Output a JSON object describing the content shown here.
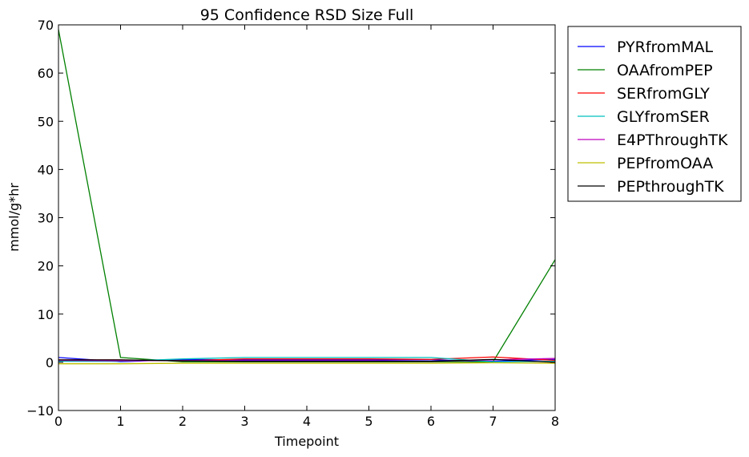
{
  "chart_data": {
    "type": "line",
    "title": "95 Confidence RSD Size Full",
    "xlabel": "Timepoint",
    "ylabel": "mmol/g*hr",
    "xlim": [
      0,
      8
    ],
    "ylim": [
      -10,
      70
    ],
    "xticks": [
      0,
      1,
      2,
      3,
      4,
      5,
      6,
      7,
      8
    ],
    "yticks": [
      -10,
      0,
      10,
      20,
      30,
      40,
      50,
      60,
      70
    ],
    "grid": false,
    "legend_position": "outside-right-top",
    "x": [
      0,
      1,
      2,
      3,
      4,
      5,
      6,
      7,
      8
    ],
    "series": [
      {
        "name": "PYRfromMAL",
        "color": "#0000ff",
        "values": [
          1.0,
          0.1,
          0.6,
          0.5,
          0.5,
          0.5,
          0.5,
          0.2,
          0.6
        ]
      },
      {
        "name": "OAAfromPEP",
        "color": "#008000",
        "values": [
          69.0,
          1.0,
          0.1,
          0.1,
          0.1,
          0.1,
          0.1,
          0.1,
          21.3
        ]
      },
      {
        "name": "SERfromGLY",
        "color": "#ff0000",
        "values": [
          0.5,
          0.5,
          0.3,
          0.7,
          0.7,
          0.7,
          0.6,
          1.1,
          0.4
        ]
      },
      {
        "name": "GLYfromSER",
        "color": "#00bfbf",
        "values": [
          0.2,
          0.2,
          0.7,
          1.0,
          1.0,
          1.0,
          1.0,
          0.1,
          0.2
        ]
      },
      {
        "name": "E4PThroughTK",
        "color": "#bf00bf",
        "values": [
          0.4,
          0.3,
          0.4,
          0.3,
          0.3,
          0.3,
          0.2,
          0.5,
          0.8
        ]
      },
      {
        "name": "PEPfromOAA",
        "color": "#bfbf00",
        "values": [
          -0.3,
          -0.3,
          -0.2,
          -0.2,
          -0.2,
          -0.2,
          -0.2,
          -0.1,
          -0.2
        ]
      },
      {
        "name": "PEPthroughTK",
        "color": "#000000",
        "values": [
          0.5,
          0.5,
          0.3,
          0.2,
          0.2,
          0.2,
          0.2,
          0.6,
          0.0
        ]
      }
    ]
  }
}
